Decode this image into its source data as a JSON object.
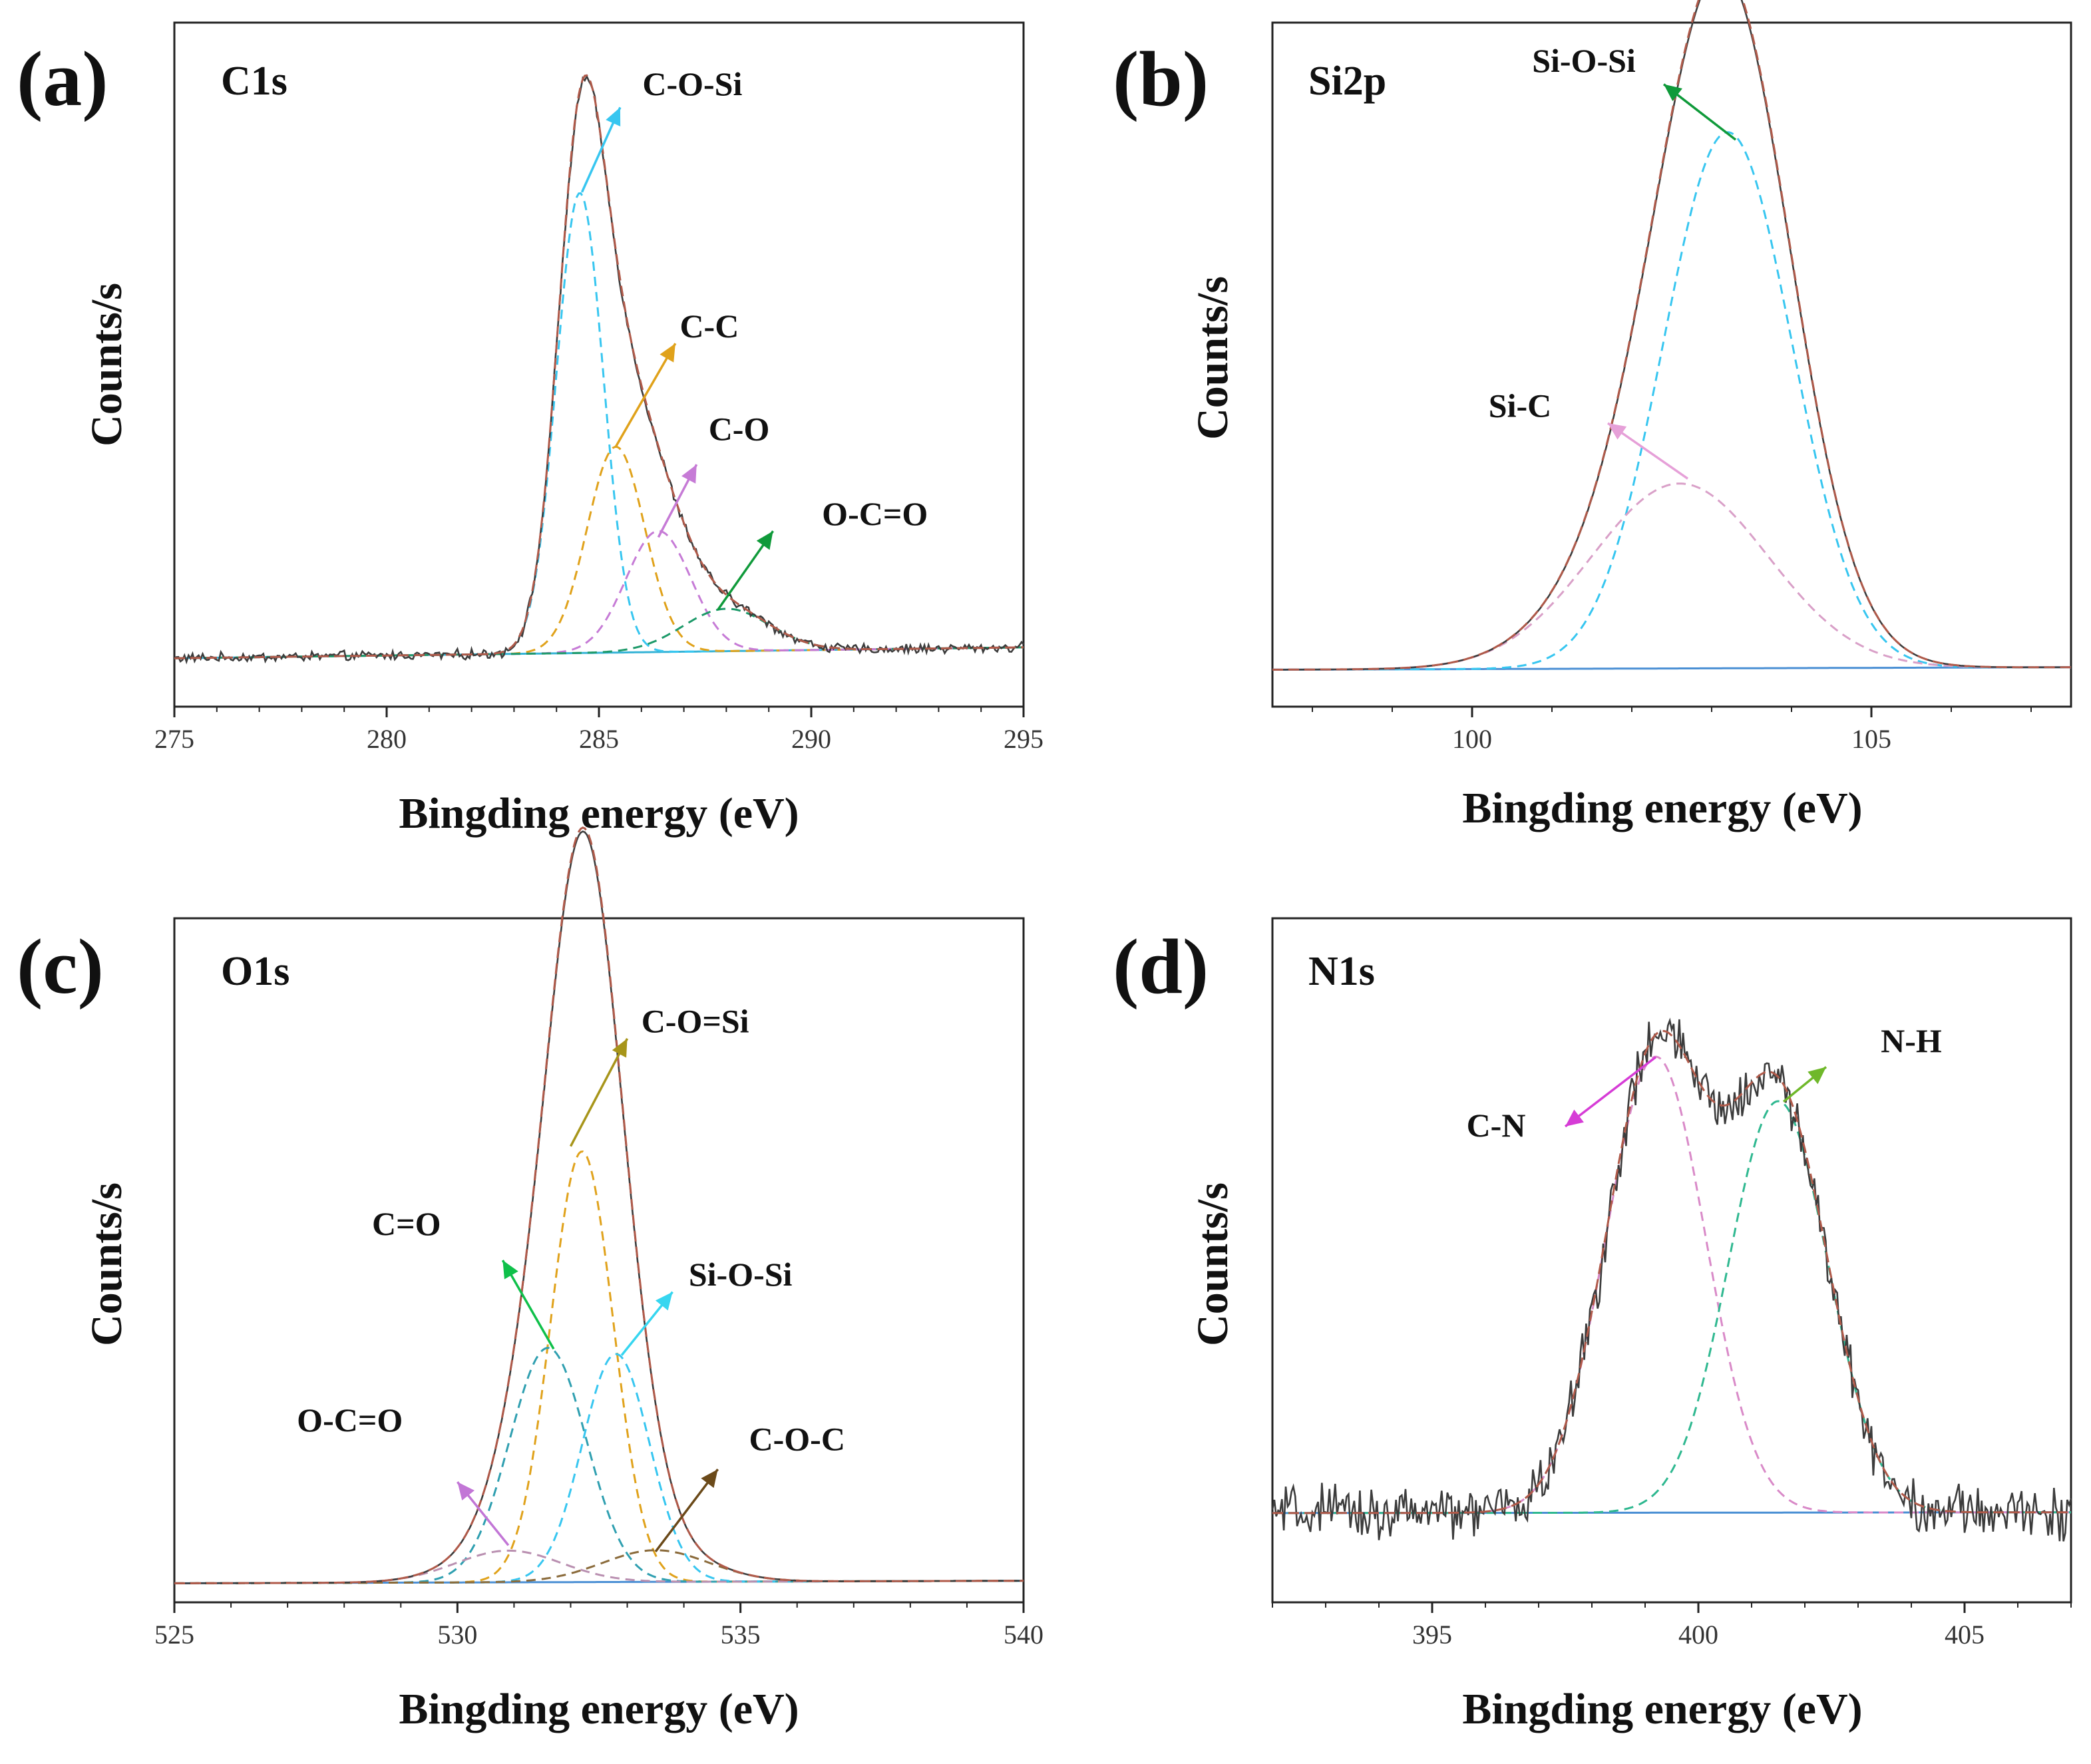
{
  "chart_data": [
    {
      "type": "line",
      "panel": "(a)",
      "title": "C1s",
      "xlabel": "Bingding energy (eV)",
      "ylabel": "Counts/s",
      "xlim": [
        275,
        295
      ],
      "ylim": [
        -0.08,
        1.05
      ],
      "xticks": [
        "275",
        "280",
        "285",
        "290",
        "295"
      ],
      "xtick_values": [
        275,
        280,
        285,
        290,
        295
      ],
      "noise": 0.006,
      "baseline": {
        "color": "#35b3d6",
        "a": 0.0,
        "b": 0.018
      },
      "components": [
        {
          "name": "C-O-Si",
          "center": 284.55,
          "fwhm": 1.3,
          "height": 0.76,
          "color": "#37c6f0"
        },
        {
          "name": "C-C",
          "center": 285.4,
          "fwhm": 1.6,
          "height": 0.34,
          "color": "#e0a21b"
        },
        {
          "name": "C-O",
          "center": 286.4,
          "fwhm": 1.8,
          "height": 0.2,
          "color": "#c67bd6"
        },
        {
          "name": "O-C=O",
          "center": 288.0,
          "fwhm": 2.4,
          "height": 0.07,
          "color": "#1e9a6a"
        }
      ],
      "annotations": [
        {
          "label": "C-O-Si",
          "color": "#37c6f0",
          "from": [
            284.6,
            0.77
          ],
          "to": [
            285.5,
            0.91
          ],
          "text_at": [
            287.2,
            0.93
          ]
        },
        {
          "label": "C-C",
          "color": "#e0a21b",
          "from": [
            285.4,
            0.35
          ],
          "to": [
            286.8,
            0.52
          ],
          "text_at": [
            287.6,
            0.53
          ]
        },
        {
          "label": "C-O",
          "color": "#c67bd6",
          "from": [
            286.4,
            0.2
          ],
          "to": [
            287.3,
            0.32
          ],
          "text_at": [
            288.3,
            0.36
          ]
        },
        {
          "label": "O-C=O",
          "color": "#0f9a3a",
          "from": [
            287.8,
            0.08
          ],
          "to": [
            289.1,
            0.21
          ],
          "text_at": [
            291.5,
            0.22
          ]
        }
      ]
    },
    {
      "type": "line",
      "panel": "(b)",
      "title": "Si2p",
      "xlabel": "Bingding energy (eV)",
      "ylabel": "Counts/s",
      "xlim": [
        97.5,
        107.5
      ],
      "ylim": [
        -0.06,
        1.05
      ],
      "xticks": [
        "100",
        "105"
      ],
      "xtick_values": [
        100,
        105
      ],
      "noise": 0.0,
      "baseline": {
        "color": "#4a8fd4",
        "a": 0.0,
        "b": 0.004
      },
      "components": [
        {
          "name": "Si-O-Si",
          "center": 103.2,
          "fwhm": 1.9,
          "height": 0.87,
          "color": "#37c6f0"
        },
        {
          "name": "Si-C",
          "center": 102.6,
          "fwhm": 2.6,
          "height": 0.3,
          "color": "#d9a0c8"
        }
      ],
      "annotations": [
        {
          "label": "Si-O-Si",
          "color": "#0f9a3a",
          "from": [
            103.3,
            0.86
          ],
          "to": [
            102.4,
            0.95
          ],
          "text_at": [
            101.4,
            0.97
          ]
        },
        {
          "label": "Si-C",
          "color": "#e6a0d8",
          "from": [
            102.7,
            0.31
          ],
          "to": [
            101.7,
            0.4
          ],
          "text_at": [
            100.6,
            0.41
          ]
        }
      ]
    },
    {
      "type": "line",
      "panel": "(c)",
      "title": "O1s",
      "xlabel": "Bingding energy (eV)",
      "ylabel": "Counts/s",
      "xlim": [
        525,
        540
      ],
      "ylim": [
        -0.03,
        1.05
      ],
      "xticks": [
        "525",
        "530",
        "535",
        "540"
      ],
      "xtick_values": [
        525,
        530,
        535,
        540
      ],
      "noise": 0.0,
      "baseline": {
        "color": "#4a8fd4",
        "a": 0.0,
        "b": 0.004
      },
      "components": [
        {
          "name": "C-O=Si",
          "center": 532.2,
          "fwhm": 1.3,
          "height": 0.68,
          "color": "#e0a21b"
        },
        {
          "name": "C=O",
          "center": 531.6,
          "fwhm": 1.6,
          "height": 0.37,
          "color": "#2f9fb0"
        },
        {
          "name": "Si-O-Si",
          "center": 532.8,
          "fwhm": 1.4,
          "height": 0.36,
          "color": "#37c6f0"
        },
        {
          "name": "O-C=O",
          "center": 530.9,
          "fwhm": 2.2,
          "height": 0.05,
          "color": "#b98fb0"
        },
        {
          "name": "C-O-C",
          "center": 533.5,
          "fwhm": 2.2,
          "height": 0.05,
          "color": "#8a6a3a"
        }
      ],
      "annotations": [
        {
          "label": "C-O=Si",
          "color": "#a7951a",
          "from": [
            532.0,
            0.69
          ],
          "to": [
            533.0,
            0.86
          ],
          "text_at": [
            534.2,
            0.87
          ]
        },
        {
          "label": "C=O",
          "color": "#0fc04a",
          "from": [
            531.7,
            0.37
          ],
          "to": [
            530.8,
            0.51
          ],
          "text_at": [
            529.1,
            0.55
          ]
        },
        {
          "label": "Si-O-Si",
          "color": "#37d6f0",
          "from": [
            532.9,
            0.36
          ],
          "to": [
            533.8,
            0.46
          ],
          "text_at": [
            535.0,
            0.47
          ]
        },
        {
          "label": "O-C=O",
          "color": "#c276d6",
          "from": [
            530.9,
            0.06
          ],
          "to": [
            530.0,
            0.16
          ],
          "text_at": [
            528.1,
            0.24
          ]
        },
        {
          "label": "C-O-C",
          "color": "#6b4a1a",
          "from": [
            533.5,
            0.05
          ],
          "to": [
            534.6,
            0.18
          ],
          "text_at": [
            536.0,
            0.21
          ]
        }
      ]
    },
    {
      "type": "line",
      "panel": "(d)",
      "title": "N1s",
      "xlabel": "Bingding energy (eV)",
      "ylabel": "Counts/s",
      "xlim": [
        392,
        407
      ],
      "ylim": [
        -0.18,
        1.2
      ],
      "xticks": [
        "395",
        "400",
        "405"
      ],
      "xtick_values": [
        395,
        400,
        405
      ],
      "noise": 0.04,
      "baseline": {
        "color": "#4a8fd4",
        "a": 0.0,
        "b": 0.0016
      },
      "components": [
        {
          "name": "C-N",
          "center": 399.2,
          "fwhm": 2.2,
          "height": 0.92,
          "color": "#d98ac8"
        },
        {
          "name": "N-H",
          "center": 401.5,
          "fwhm": 2.2,
          "height": 0.83,
          "color": "#2fb890"
        }
      ],
      "annotations": [
        {
          "label": "C-N",
          "color": "#d63cd6",
          "from": [
            399.2,
            0.92
          ],
          "to": [
            397.5,
            0.78
          ],
          "text_at": [
            396.2,
            0.76
          ]
        },
        {
          "label": "N-H",
          "color": "#6fb82a",
          "from": [
            401.6,
            0.83
          ],
          "to": [
            402.4,
            0.9
          ],
          "text_at": [
            404.0,
            0.93
          ]
        }
      ]
    }
  ]
}
